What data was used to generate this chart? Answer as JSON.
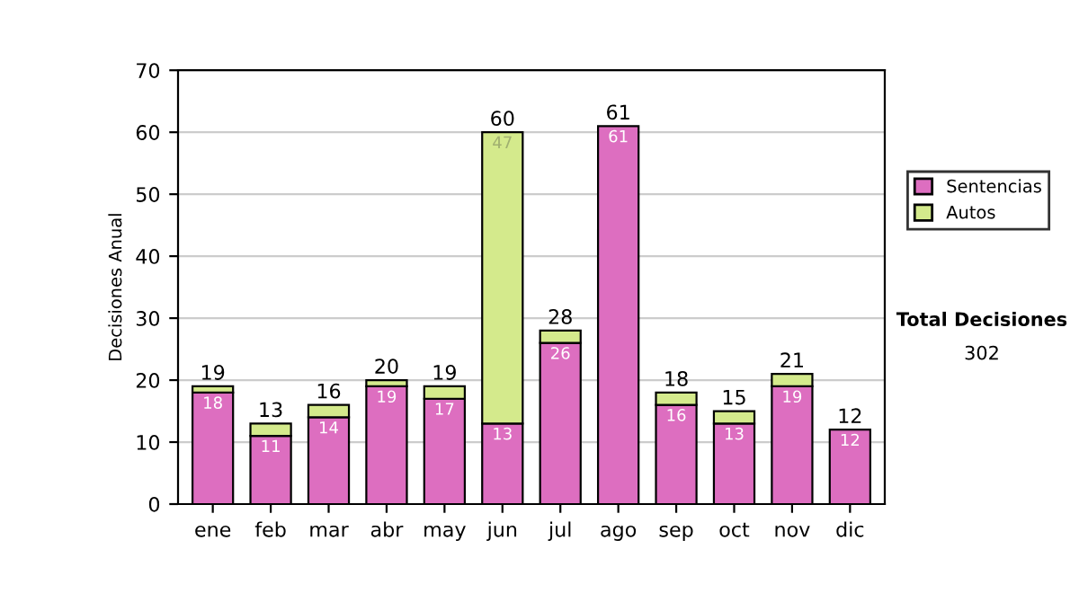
{
  "chart_data": {
    "type": "bar",
    "stacked": true,
    "ylabel": "Decisiones Anual",
    "categories": [
      "ene",
      "feb",
      "mar",
      "abr",
      "may",
      "jun",
      "jul",
      "ago",
      "sep",
      "oct",
      "nov",
      "dic"
    ],
    "series": [
      {
        "name": "Sentencias",
        "color": "#dd6ec0",
        "values": [
          18,
          11,
          14,
          19,
          17,
          13,
          26,
          61,
          16,
          13,
          19,
          12
        ],
        "value_labels": [
          "18",
          "11",
          "14",
          "19",
          "17",
          "13",
          "26",
          "61",
          "16",
          "13",
          "19",
          "12"
        ]
      },
      {
        "name": "Autos",
        "color": "#d4ea8c",
        "values": [
          1,
          2,
          2,
          1,
          2,
          47,
          2,
          0,
          2,
          2,
          2,
          0
        ],
        "value_labels": [
          null,
          null,
          null,
          null,
          null,
          "47",
          null,
          null,
          null,
          null,
          null,
          null
        ]
      }
    ],
    "totals": [
      "19",
      "13",
      "16",
      "20",
      "19",
      "60",
      "28",
      "61",
      "18",
      "15",
      "21",
      "12"
    ],
    "ylim": [
      0,
      70
    ],
    "yticks": [
      0,
      10,
      20,
      30,
      40,
      50,
      60,
      70
    ],
    "grid": "y",
    "legend": "right",
    "annotations": [
      "Total Decisiones",
      "302"
    ]
  }
}
